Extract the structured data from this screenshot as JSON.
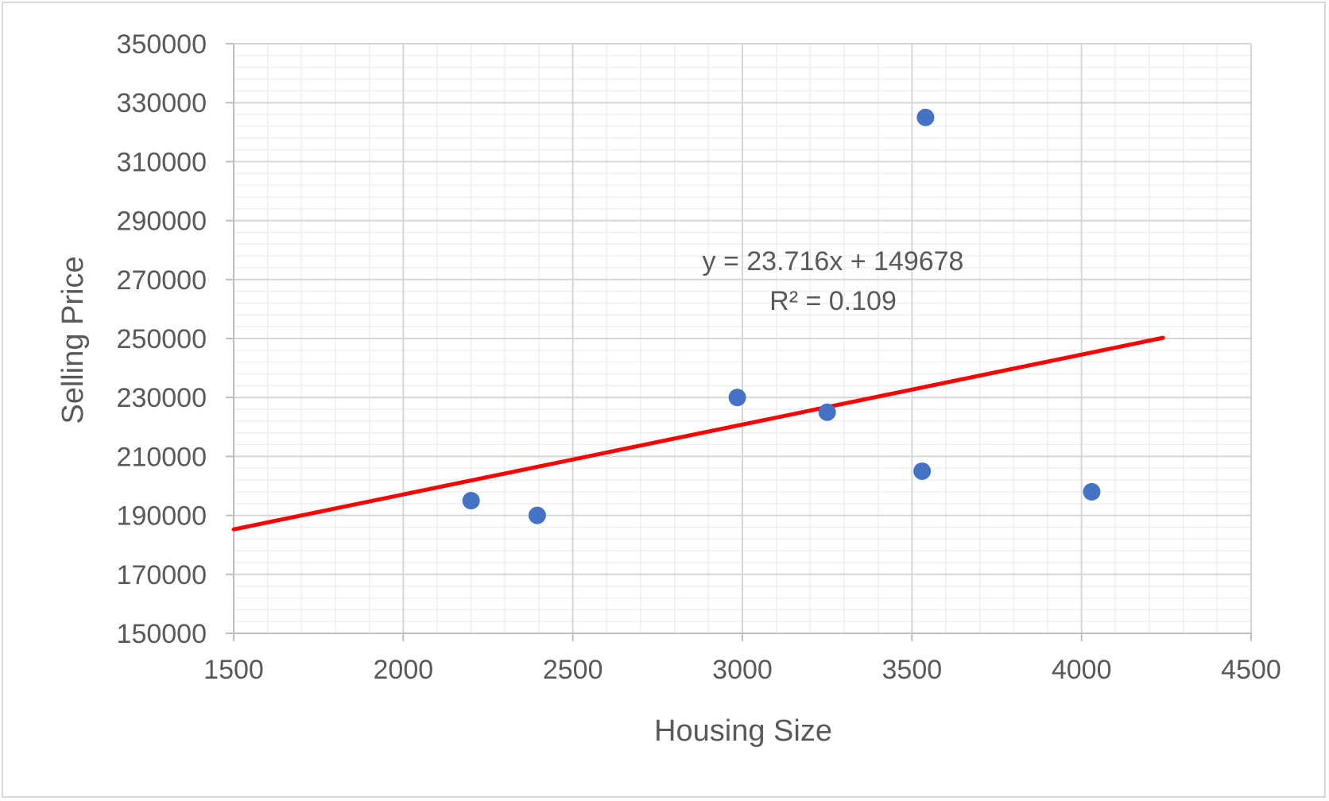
{
  "chart_data": {
    "type": "scatter",
    "xlabel": "Housing Size",
    "ylabel": "Selling Price",
    "xlim": [
      1500,
      4500
    ],
    "ylim": [
      150000,
      350000
    ],
    "x_ticks": [
      1500,
      2000,
      2500,
      3000,
      3500,
      4000,
      4500
    ],
    "y_ticks": [
      150000,
      170000,
      190000,
      210000,
      230000,
      250000,
      270000,
      290000,
      310000,
      330000,
      350000
    ],
    "x_minor_step": 100,
    "y_minor_step": 4000,
    "grid": true,
    "series": [
      {
        "color": "#4472c4",
        "points": [
          {
            "x": 2200,
            "y": 195000
          },
          {
            "x": 2395,
            "y": 190000
          },
          {
            "x": 2985,
            "y": 230000
          },
          {
            "x": 3250,
            "y": 225000
          },
          {
            "x": 3530,
            "y": 205000
          },
          {
            "x": 3540,
            "y": 325000
          },
          {
            "x": 4030,
            "y": 198000
          }
        ]
      }
    ],
    "trendline": {
      "type": "linear",
      "color": "#ff0000",
      "slope": 23.716,
      "intercept": 149678,
      "x_range": [
        1500,
        4240
      ],
      "equation": "y = 23.716x + 149678",
      "r_squared": "R² = 0.109"
    }
  }
}
